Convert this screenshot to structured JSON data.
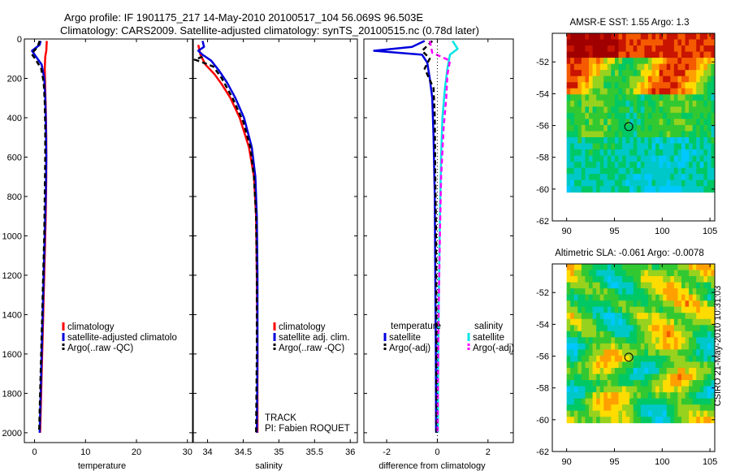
{
  "header": {
    "line1": "Argo profile: IF 1901175_217 14-May-2010 20100517_104 56.069S 96.503E",
    "line2": "Climatology: CARS2009. Satellite-adjusted climatology: synTS_20100515.nc (0.78d later)"
  },
  "footer_stamp": "CSIRO 21-May-2010 10:31:03",
  "colors": {
    "climatology": "#ff0000",
    "satellite": "#0000dd",
    "argo": "#000000",
    "salinity_satellite": "#00e5e5",
    "salinity_argo": "#ff00ff"
  },
  "chart_data": [
    {
      "id": "temperature",
      "type": "line",
      "xlabel": "temperature",
      "ylabel": "",
      "xlim": [
        -2,
        31
      ],
      "ylim": [
        2050,
        0
      ],
      "xticks": [
        0,
        10,
        20,
        30
      ],
      "yticks": [
        0,
        200,
        400,
        600,
        800,
        1000,
        1200,
        1400,
        1600,
        1800,
        2000
      ],
      "series": [
        {
          "name": "climatology",
          "color_key": "climatology",
          "style": "solid",
          "points": [
            [
              2.4,
              10
            ],
            [
              2.3,
              60
            ],
            [
              2.1,
              90
            ],
            [
              2.0,
              150
            ],
            [
              2.1,
              250
            ],
            [
              2.2,
              350
            ],
            [
              2.3,
              500
            ],
            [
              2.3,
              700
            ],
            [
              2.2,
              900
            ],
            [
              2.0,
              1100
            ],
            [
              1.8,
              1300
            ],
            [
              1.6,
              1500
            ],
            [
              1.4,
              1700
            ],
            [
              1.2,
              1900
            ],
            [
              1.1,
              2000
            ]
          ]
        },
        {
          "name": "satellite-adjusted climatology",
          "color_key": "satellite",
          "style": "solid",
          "points": [
            [
              1.2,
              10
            ],
            [
              1.0,
              30
            ],
            [
              -0.5,
              60
            ],
            [
              0.3,
              90
            ],
            [
              1.4,
              130
            ],
            [
              1.9,
              200
            ],
            [
              2.1,
              300
            ],
            [
              2.2,
              400
            ],
            [
              2.3,
              600
            ],
            [
              2.2,
              800
            ],
            [
              2.0,
              1000
            ],
            [
              1.8,
              1200
            ],
            [
              1.6,
              1400
            ],
            [
              1.4,
              1600
            ],
            [
              1.2,
              1800
            ],
            [
              1.0,
              2000
            ]
          ]
        },
        {
          "name": "Argo(..raw -QC)",
          "color_key": "argo",
          "style": "dash",
          "points": [
            [
              1.0,
              10
            ],
            [
              0.6,
              40
            ],
            [
              -0.6,
              75
            ],
            [
              0.1,
              100
            ],
            [
              1.3,
              150
            ],
            [
              1.8,
              220
            ],
            [
              2.0,
              320
            ],
            [
              2.1,
              450
            ],
            [
              2.1,
              600
            ],
            [
              2.0,
              800
            ],
            [
              1.9,
              1000
            ],
            [
              1.7,
              1200
            ],
            [
              1.5,
              1400
            ],
            [
              1.3,
              1600
            ],
            [
              1.1,
              1800
            ],
            [
              0.9,
              2000
            ]
          ]
        }
      ],
      "legend": {
        "position": "bottom",
        "entries": [
          "climatology",
          "satellite-adjusted climatolo",
          "Argo(..raw -QC)"
        ]
      }
    },
    {
      "id": "salinity",
      "type": "line",
      "xlabel": "salinity",
      "ylabel": "",
      "xlim": [
        33.8,
        36.1
      ],
      "ylim": [
        2050,
        0
      ],
      "xticks": [
        34,
        34.5,
        35,
        35.5,
        36
      ],
      "xtick_labels": [
        "34",
        "34.5",
        "35",
        "35.5",
        "36"
      ],
      "yticks": [
        0,
        200,
        400,
        600,
        800,
        1000,
        1200,
        1400,
        1600,
        1800,
        2000
      ],
      "series": [
        {
          "name": "climatology",
          "color_key": "climatology",
          "style": "solid",
          "points": [
            [
              33.87,
              30
            ],
            [
              33.9,
              80
            ],
            [
              33.97,
              130
            ],
            [
              34.1,
              180
            ],
            [
              34.2,
              230
            ],
            [
              34.32,
              300
            ],
            [
              34.45,
              400
            ],
            [
              34.58,
              550
            ],
            [
              34.65,
              700
            ],
            [
              34.68,
              900
            ],
            [
              34.69,
              1200
            ],
            [
              34.7,
              1600
            ],
            [
              34.7,
              2000
            ]
          ]
        },
        {
          "name": "satellite adj. clim.",
          "color_key": "satellite",
          "style": "solid",
          "points": [
            [
              33.93,
              10
            ],
            [
              33.95,
              40
            ],
            [
              33.87,
              60
            ],
            [
              33.93,
              80
            ],
            [
              34.05,
              110
            ],
            [
              34.16,
              160
            ],
            [
              34.27,
              220
            ],
            [
              34.39,
              300
            ],
            [
              34.51,
              400
            ],
            [
              34.62,
              550
            ],
            [
              34.67,
              700
            ],
            [
              34.69,
              900
            ],
            [
              34.7,
              1200
            ],
            [
              34.7,
              1600
            ],
            [
              34.69,
              2000
            ]
          ]
        },
        {
          "name": "Argo(..raw -QC)",
          "color_key": "argo",
          "style": "dash",
          "points": [
            [
              33.93,
              90
            ],
            [
              33.82,
              105
            ],
            [
              33.9,
              115
            ],
            [
              34.08,
              140
            ],
            [
              34.2,
              200
            ],
            [
              34.35,
              300
            ],
            [
              34.5,
              420
            ],
            [
              34.6,
              550
            ],
            [
              34.65,
              700
            ],
            [
              34.68,
              900
            ],
            [
              34.69,
              1200
            ],
            [
              34.69,
              1600
            ],
            [
              34.68,
              2000
            ]
          ]
        }
      ],
      "legend": {
        "position": "bottom",
        "entries": [
          "climatology",
          "satellite adj. clim.",
          "Argo(..raw -QC)"
        ]
      },
      "annotations": [
        "TRACK",
        "PI: Fabien ROQUET"
      ]
    },
    {
      "id": "difference",
      "type": "line",
      "xlabel": "difference from climatology",
      "ylabel": "",
      "xlim": [
        -2.9,
        3.0
      ],
      "ylim": [
        2050,
        0
      ],
      "xticks": [
        -2,
        0,
        2
      ],
      "yticks": [
        0,
        200,
        400,
        600,
        800,
        1000,
        1200,
        1400,
        1600,
        1800,
        2000
      ],
      "series": [
        {
          "name": "temperature satellite",
          "color_key": "satellite",
          "style": "solid",
          "points": [
            [
              -0.5,
              10
            ],
            [
              -1.0,
              40
            ],
            [
              -2.5,
              60
            ],
            [
              -0.6,
              80
            ],
            [
              -0.4,
              120
            ],
            [
              -0.3,
              200
            ],
            [
              -0.2,
              300
            ],
            [
              -0.15,
              500
            ],
            [
              -0.1,
              800
            ],
            [
              -0.08,
              1200
            ],
            [
              -0.06,
              1600
            ],
            [
              -0.05,
              2000
            ]
          ]
        },
        {
          "name": "temperature Argo(-adj)",
          "color_key": "argo",
          "style": "dash",
          "points": [
            [
              -0.2,
              10
            ],
            [
              -0.6,
              60
            ],
            [
              -0.3,
              100
            ],
            [
              -0.5,
              150
            ],
            [
              -0.15,
              250
            ],
            [
              -0.1,
              400
            ],
            [
              -0.08,
              700
            ],
            [
              -0.05,
              1000
            ],
            [
              -0.04,
              1500
            ],
            [
              -0.03,
              2000
            ]
          ]
        },
        {
          "name": "salinity satellite",
          "color_key": "salinity_satellite",
          "style": "solid",
          "points": [
            [
              0.6,
              10
            ],
            [
              0.8,
              50
            ],
            [
              0.5,
              80
            ],
            [
              0.4,
              150
            ],
            [
              0.3,
              250
            ],
            [
              0.2,
              400
            ],
            [
              0.15,
              600
            ],
            [
              0.1,
              900
            ],
            [
              0.06,
              1300
            ],
            [
              0.03,
              1700
            ],
            [
              0.02,
              2000
            ]
          ]
        },
        {
          "name": "salinity Argo(-adj)",
          "color_key": "salinity_argo",
          "style": "dash",
          "points": [
            [
              -0.3,
              10
            ],
            [
              -0.2,
              70
            ],
            [
              0.5,
              110
            ],
            [
              0.4,
              180
            ],
            [
              0.35,
              300
            ],
            [
              0.25,
              450
            ],
            [
              0.15,
              700
            ],
            [
              0.1,
              1000
            ],
            [
              0.05,
              1400
            ],
            [
              0.02,
              1800
            ],
            [
              0.01,
              2000
            ]
          ]
        }
      ],
      "legend": {
        "position": "bottom",
        "groups": [
          {
            "title": "temperature",
            "entries": [
              "satellite",
              "Argo(-adj)"
            ]
          },
          {
            "title": "salinity",
            "entries": [
              "satellite",
              "Argo(-adj)"
            ]
          }
        ]
      }
    },
    {
      "id": "sst_map",
      "type": "heatmap",
      "title": "AMSR-E SST: 1.55 Argo: 1.3",
      "xlim": [
        88.5,
        105.5
      ],
      "ylim": [
        -62,
        -50.2
      ],
      "xticks": [
        90,
        95,
        100,
        105
      ],
      "yticks": [
        -52,
        -54,
        -56,
        -58,
        -60,
        -62
      ],
      "data_extent": {
        "lon": [
          90,
          105.5
        ],
        "lat": [
          -60.2,
          -50.2
        ]
      },
      "marker": {
        "lon": 96.5,
        "lat": -56.07,
        "shape": "circle"
      },
      "palette": [
        "#00c8ff",
        "#00c8c8",
        "#00c864",
        "#32c832",
        "#96d21e",
        "#ffdc00",
        "#ffa000",
        "#f55a00",
        "#c81400",
        "#a00000"
      ]
    },
    {
      "id": "sla_map",
      "type": "heatmap",
      "title": "Altimetric SLA: -0.061 Argo: -0.0078",
      "xlim": [
        88.5,
        105.5
      ],
      "ylim": [
        -62,
        -50.2
      ],
      "xticks": [
        90,
        95,
        100,
        105
      ],
      "yticks": [
        -52,
        -54,
        -56,
        -58,
        -60,
        -62
      ],
      "data_extent": {
        "lon": [
          90,
          105.5
        ],
        "lat": [
          -60.2,
          -50.2
        ]
      },
      "marker": {
        "lon": 96.5,
        "lat": -56.07,
        "shape": "circle"
      },
      "palette": [
        "#00c8ff",
        "#00c8c8",
        "#00c864",
        "#32c832",
        "#96d21e",
        "#ffdc00",
        "#ffa000",
        "#f55a00",
        "#c81400",
        "#a00000"
      ]
    }
  ]
}
